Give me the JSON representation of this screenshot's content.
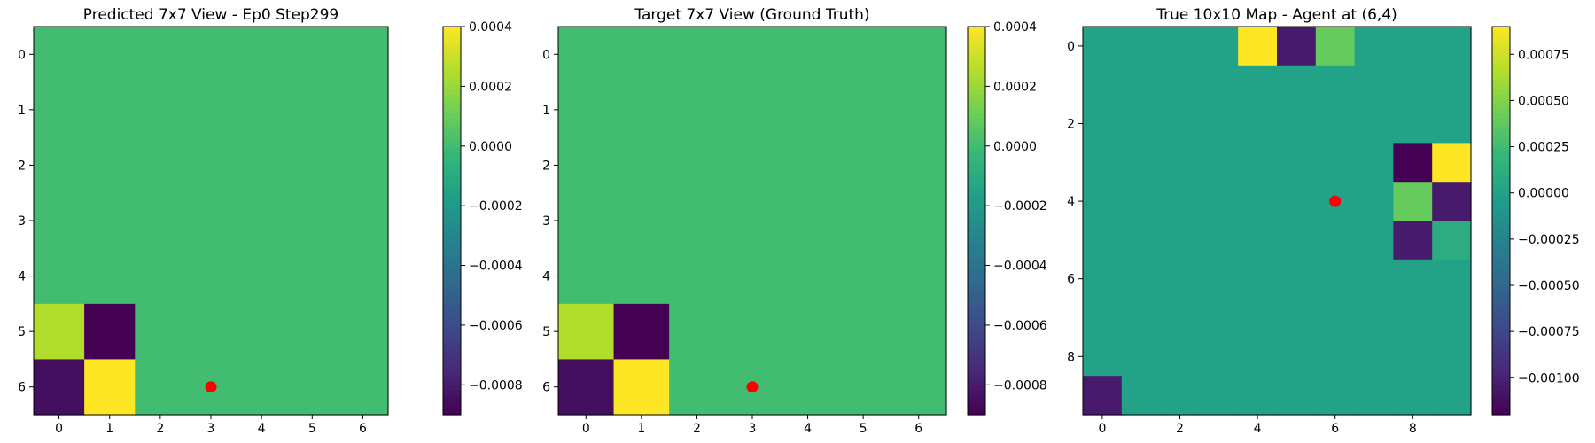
{
  "chart_data": [
    {
      "type": "heatmap",
      "title": "Predicted 7x7 View - Ep0 Step299",
      "xlabel": "",
      "ylabel": "",
      "rows": 7,
      "cols": 7,
      "x_ticks": [
        0,
        1,
        2,
        3,
        4,
        5,
        6
      ],
      "y_ticks": [
        0,
        1,
        2,
        3,
        4,
        5,
        6
      ],
      "values": [
        [
          0,
          0,
          0,
          0,
          0,
          0,
          0
        ],
        [
          0,
          0,
          0,
          0,
          0,
          0,
          0
        ],
        [
          0,
          0,
          0,
          0,
          0,
          0,
          0
        ],
        [
          0,
          0,
          0,
          0,
          0,
          0,
          0
        ],
        [
          0,
          0,
          0,
          0,
          0,
          0,
          0
        ],
        [
          0.00025,
          -0.0009,
          0,
          0,
          0,
          0,
          0
        ],
        [
          -0.00085,
          0.0004,
          0,
          0,
          0,
          0,
          0
        ]
      ],
      "vmin": -0.0009,
      "vmax": 0.0004,
      "colormap": "viridis",
      "colorbar_ticks": [
        0.0004,
        0.0002,
        0,
        -0.0002,
        -0.0004,
        -0.0006,
        -0.0008
      ],
      "colorbar_labels": [
        "0.0004",
        "0.0002",
        "0.0000",
        "−0.0002",
        "−0.0004",
        "−0.0006",
        "−0.0008"
      ],
      "marker": {
        "x": 3,
        "y": 6,
        "color": "#ff0000"
      }
    },
    {
      "type": "heatmap",
      "title": "Target 7x7 View (Ground Truth)",
      "xlabel": "",
      "ylabel": "",
      "rows": 7,
      "cols": 7,
      "x_ticks": [
        0,
        1,
        2,
        3,
        4,
        5,
        6
      ],
      "y_ticks": [
        0,
        1,
        2,
        3,
        4,
        5,
        6
      ],
      "values": [
        [
          0,
          0,
          0,
          0,
          0,
          0,
          0
        ],
        [
          0,
          0,
          0,
          0,
          0,
          0,
          0
        ],
        [
          0,
          0,
          0,
          0,
          0,
          0,
          0
        ],
        [
          0,
          0,
          0,
          0,
          0,
          0,
          0
        ],
        [
          0,
          0,
          0,
          0,
          0,
          0,
          0
        ],
        [
          0.00025,
          -0.0009,
          0,
          0,
          0,
          0,
          0
        ],
        [
          -0.00085,
          0.0004,
          0,
          0,
          0,
          0,
          0
        ]
      ],
      "vmin": -0.0009,
      "vmax": 0.0004,
      "colormap": "viridis",
      "colorbar_ticks": [
        0.0004,
        0.0002,
        0,
        -0.0002,
        -0.0004,
        -0.0006,
        -0.0008
      ],
      "colorbar_labels": [
        "0.0004",
        "0.0002",
        "0.0000",
        "−0.0002",
        "−0.0004",
        "−0.0006",
        "−0.0008"
      ],
      "marker": {
        "x": 3,
        "y": 6,
        "color": "#ff0000"
      }
    },
    {
      "type": "heatmap",
      "title": "True 10x10 Map - Agent at (6,4)",
      "xlabel": "",
      "ylabel": "",
      "rows": 10,
      "cols": 10,
      "x_ticks": [
        0,
        2,
        4,
        6,
        8
      ],
      "y_ticks": [
        0,
        2,
        4,
        6,
        8
      ],
      "values": [
        [
          0,
          0,
          0,
          0,
          0.0009,
          -0.00105,
          0.0004,
          0,
          0,
          0
        ],
        [
          0,
          0,
          0,
          0,
          0,
          0,
          0,
          0,
          0,
          0
        ],
        [
          0,
          0,
          0,
          0,
          0,
          0,
          0,
          0,
          0,
          0
        ],
        [
          0,
          0,
          0,
          0,
          0,
          0,
          0,
          0,
          -0.0012,
          0.0009
        ],
        [
          0,
          0,
          0,
          0,
          0,
          0,
          0,
          0,
          0.0004,
          -0.00105
        ],
        [
          0,
          0,
          0,
          0,
          0,
          0,
          0,
          0,
          -0.00105,
          0.0001
        ],
        [
          0,
          0,
          0,
          0,
          0,
          0,
          0,
          0,
          0,
          0
        ],
        [
          0,
          0,
          0,
          0,
          0,
          0,
          0,
          0,
          0,
          0
        ],
        [
          0,
          0,
          0,
          0,
          0,
          0,
          0,
          0,
          0,
          0
        ],
        [
          -0.00105,
          0,
          0,
          0,
          0,
          0,
          0,
          0,
          0,
          0
        ]
      ],
      "vmin": -0.0012,
      "vmax": 0.0009,
      "colormap": "viridis",
      "colorbar_ticks": [
        0.00075,
        0.0005,
        0.00025,
        0,
        -0.00025,
        -0.0005,
        -0.00075,
        -0.001
      ],
      "colorbar_labels": [
        "0.00075",
        "0.00050",
        "0.00025",
        "0.00000",
        "−0.00025",
        "−0.00050",
        "−0.00075",
        "−0.00100"
      ],
      "marker": {
        "x": 6,
        "y": 4,
        "color": "#ff0000"
      }
    }
  ]
}
